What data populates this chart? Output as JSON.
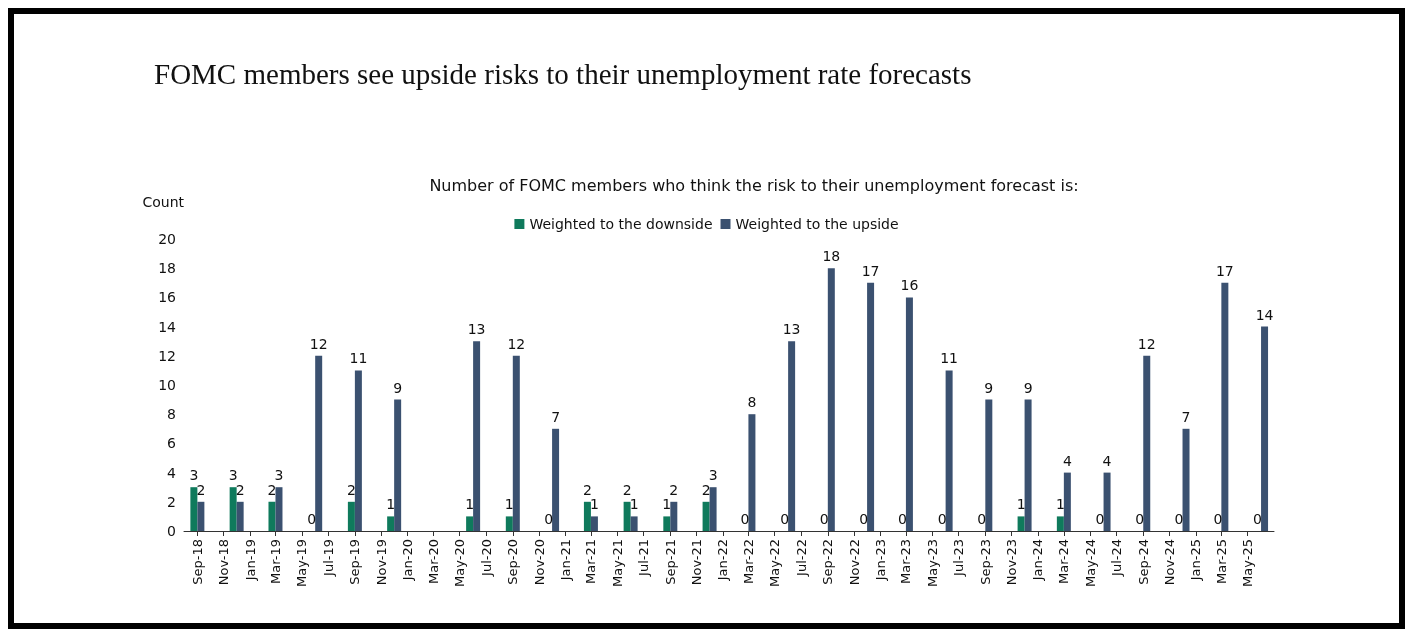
{
  "chart_data": {
    "type": "bar",
    "title": "FOMC members see upside risks to their unemployment rate forecasts",
    "subtitle": "Number of FOMC members who think the risk to their unemployment forecast is:",
    "ylabel": "Count",
    "x": [
      "2018-09",
      "2018-12",
      "2019-03",
      "2019-06",
      "2019-09",
      "2019-12",
      "2020-06",
      "2020-09",
      "2020-12",
      "2021-03",
      "2021-06",
      "2021-09",
      "2021-12",
      "2022-03",
      "2022-06",
      "2022-09",
      "2022-12",
      "2023-03",
      "2023-06",
      "2023-09",
      "2023-12",
      "2024-03",
      "2024-06",
      "2024-09",
      "2024-12",
      "2025-03",
      "2025-06"
    ],
    "series": [
      {
        "name": "Weighted to the downside",
        "color": "#0f7a5c",
        "values": [
          3,
          3,
          2,
          0,
          2,
          1,
          1,
          1,
          0,
          2,
          2,
          1,
          2,
          0,
          0,
          0,
          0,
          0,
          0,
          0,
          1,
          1,
          0,
          0,
          0,
          0,
          0
        ]
      },
      {
        "name": "Weighted to the upside",
        "color": "#3b5170",
        "values": [
          2,
          2,
          3,
          12,
          11,
          9,
          13,
          12,
          7,
          1,
          1,
          2,
          3,
          8,
          13,
          18,
          17,
          16,
          11,
          9,
          9,
          4,
          4,
          12,
          7,
          17,
          14
        ]
      }
    ],
    "xlim": [
      "2018-08",
      "2025-07"
    ],
    "xticks": [
      {
        "value": "2018-09",
        "label": "Sep-18"
      },
      {
        "value": "2018-11",
        "label": "Nov-18"
      },
      {
        "value": "2019-01",
        "label": "Jan-19"
      },
      {
        "value": "2019-03",
        "label": "Mar-19"
      },
      {
        "value": "2019-05",
        "label": "May-19"
      },
      {
        "value": "2019-07",
        "label": "Jul-19"
      },
      {
        "value": "2019-09",
        "label": "Sep-19"
      },
      {
        "value": "2019-11",
        "label": "Nov-19"
      },
      {
        "value": "2020-01",
        "label": "Jan-20"
      },
      {
        "value": "2020-03",
        "label": "Mar-20"
      },
      {
        "value": "2020-05",
        "label": "May-20"
      },
      {
        "value": "2020-07",
        "label": "Jul-20"
      },
      {
        "value": "2020-09",
        "label": "Sep-20"
      },
      {
        "value": "2020-11",
        "label": "Nov-20"
      },
      {
        "value": "2021-01",
        "label": "Jan-21"
      },
      {
        "value": "2021-03",
        "label": "Mar-21"
      },
      {
        "value": "2021-05",
        "label": "May-21"
      },
      {
        "value": "2021-07",
        "label": "Jul-21"
      },
      {
        "value": "2021-09",
        "label": "Sep-21"
      },
      {
        "value": "2021-11",
        "label": "Nov-21"
      },
      {
        "value": "2022-01",
        "label": "Jan-22"
      },
      {
        "value": "2022-03",
        "label": "Mar-22"
      },
      {
        "value": "2022-05",
        "label": "May-22"
      },
      {
        "value": "2022-07",
        "label": "Jul-22"
      },
      {
        "value": "2022-09",
        "label": "Sep-22"
      },
      {
        "value": "2022-11",
        "label": "Nov-22"
      },
      {
        "value": "2023-01",
        "label": "Jan-23"
      },
      {
        "value": "2023-03",
        "label": "Mar-23"
      },
      {
        "value": "2023-05",
        "label": "May-23"
      },
      {
        "value": "2023-07",
        "label": "Jul-23"
      },
      {
        "value": "2023-09",
        "label": "Sep-23"
      },
      {
        "value": "2023-11",
        "label": "Nov-23"
      },
      {
        "value": "2024-01",
        "label": "Jan-24"
      },
      {
        "value": "2024-03",
        "label": "Mar-24"
      },
      {
        "value": "2024-05",
        "label": "May-24"
      },
      {
        "value": "2024-07",
        "label": "Jul-24"
      },
      {
        "value": "2024-09",
        "label": "Sep-24"
      },
      {
        "value": "2024-11",
        "label": "Nov-24"
      },
      {
        "value": "2025-01",
        "label": "Jan-25"
      },
      {
        "value": "2025-03",
        "label": "Mar-25"
      },
      {
        "value": "2025-05",
        "label": "May-25"
      }
    ],
    "ylim": [
      0,
      20
    ],
    "yticks": [
      0,
      2,
      4,
      6,
      8,
      10,
      12,
      14,
      16,
      18,
      20
    ],
    "data_labels": true,
    "legend": "top",
    "grid": false
  }
}
